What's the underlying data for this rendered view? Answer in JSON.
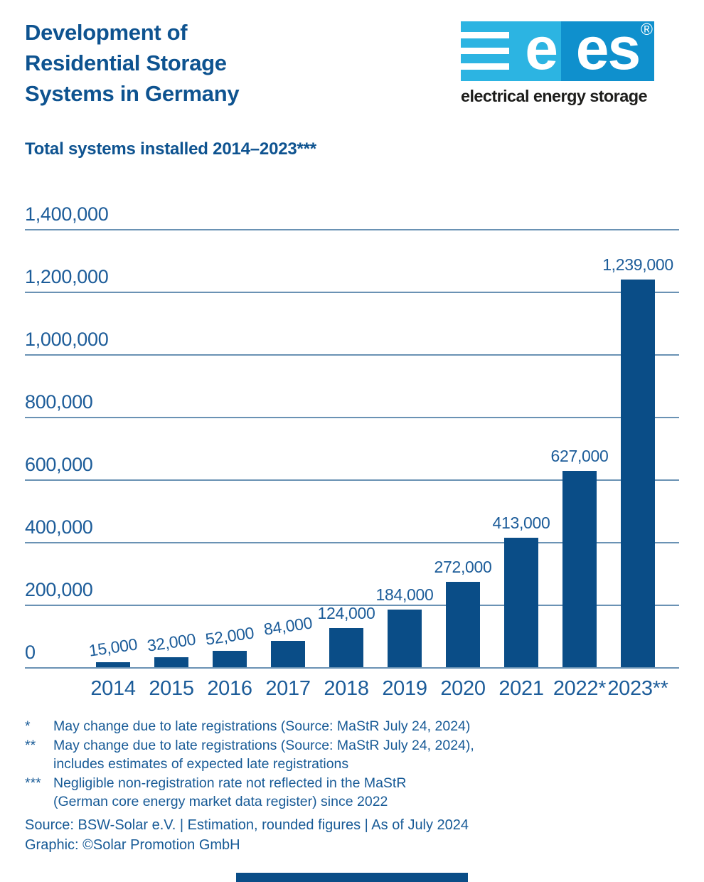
{
  "header": {
    "title_lines": [
      "Development of",
      "Residential Storage",
      "Systems in Germany"
    ],
    "subtitle": "Total systems installed 2014–2023***"
  },
  "logo": {
    "letter_left": "e",
    "letters_right": "es",
    "registered_mark": "®",
    "tagline": "electrical energy storage",
    "cyan": "#2cb4e2",
    "blue": "#0f90cd"
  },
  "chart_data": {
    "type": "bar",
    "title": "Total systems installed 2014–2023***",
    "categories": [
      "2014",
      "2015",
      "2016",
      "2017",
      "2018",
      "2019",
      "2020",
      "2021",
      "2022*",
      "2023**"
    ],
    "values": [
      15000,
      32000,
      52000,
      84000,
      124000,
      184000,
      272000,
      413000,
      627000,
      1239000
    ],
    "value_labels": [
      "15,000",
      "32,000",
      "52,000",
      "84,000",
      "124,000",
      "184,000",
      "272,000",
      "413,000",
      "627,000",
      "1,239,000"
    ],
    "rotated_label_count": 4,
    "y_ticks": [
      {
        "value": 0,
        "label": "0"
      },
      {
        "value": 200000,
        "label": "200,000"
      },
      {
        "value": 400000,
        "label": "400,000"
      },
      {
        "value": 600000,
        "label": "600,000"
      },
      {
        "value": 800000,
        "label": "800,000"
      },
      {
        "value": 1000000,
        "label": "1,000,000"
      },
      {
        "value": 1200000,
        "label": "1,200,000"
      },
      {
        "value": 1400000,
        "label": "1,400,000"
      }
    ],
    "ylim": [
      0,
      1400000
    ],
    "grid": true,
    "legend": "none",
    "bar_color": "#0a4d87",
    "grid_color": "#6a92b4",
    "label_color": "#1c5c99"
  },
  "footnotes": [
    {
      "marker": "*",
      "text": "May change due to late registrations (Source: MaStR July 24, 2024)"
    },
    {
      "marker": "**",
      "text": "May change due to late registrations (Source: MaStR July 24, 2024),\nincludes estimates of expected late registrations"
    },
    {
      "marker": "***",
      "text": "Negligible non-registration rate not reflected in the MaStR\n(German core energy market data register) since 2022"
    }
  ],
  "source": {
    "line1": "Source: BSW-Solar e.V. | Estimation, rounded figures | As of July 2024",
    "line2": "Graphic: ©Solar Promotion GmbH"
  },
  "accent_color": "#0a4d87"
}
